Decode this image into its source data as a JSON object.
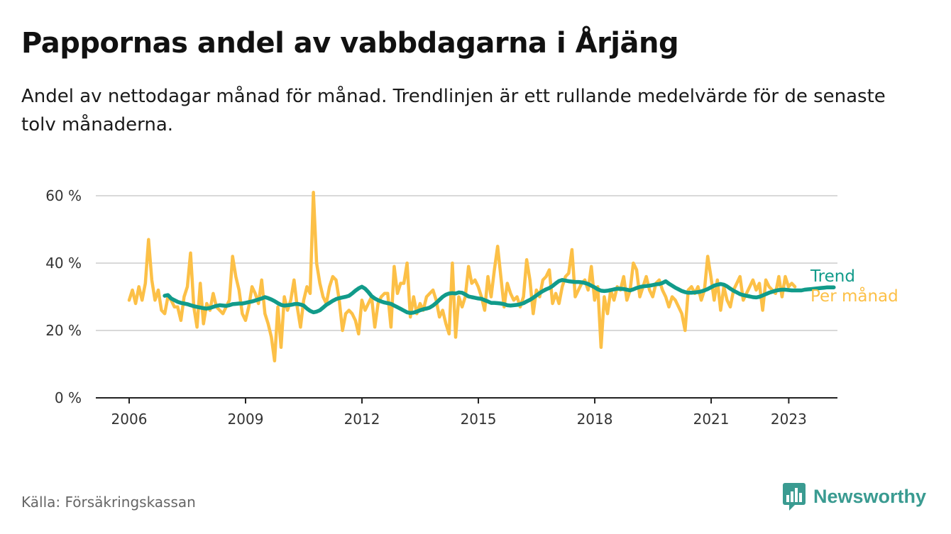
{
  "title": "Pappornas andel av vabbdagarna i Årjäng",
  "subtitle": "Andel av nettodagar månad för månad. Trendlinjen är ett rullande medelvärde för de senaste tolv månaderna.",
  "source": "Källa: Försäkringskassan",
  "brand": {
    "name": "Newsworthy",
    "icon": "newsworthy-bar-chart-icon",
    "color": "#3a9b91"
  },
  "colors": {
    "per_month": "#fcc047",
    "trend": "#119b8a",
    "grid": "#d9d9d9",
    "axis": "#222222"
  },
  "chart_data": {
    "type": "line",
    "x_unit": "year",
    "ylim": [
      0,
      60
    ],
    "yticks": [
      0,
      20,
      40,
      60
    ],
    "ytick_labels": [
      "0 %",
      "20 %",
      "40 %",
      "60 %"
    ],
    "xticks": [
      2006,
      2009,
      2012,
      2015,
      2018,
      2021,
      2023
    ],
    "xtick_labels": [
      "2006",
      "2009",
      "2012",
      "2015",
      "2018",
      "2021",
      "2023"
    ],
    "grid": true,
    "series": [
      {
        "name": "Per månad",
        "x_start": 2006.0,
        "x_step": 0.0833,
        "values": [
          29,
          32,
          28,
          33,
          29,
          34,
          47,
          35,
          29,
          32,
          26,
          25,
          30,
          29,
          27,
          27,
          23,
          30,
          33,
          43,
          27,
          21,
          34,
          22,
          28,
          26,
          31,
          27,
          26,
          25,
          27,
          29,
          42,
          36,
          32,
          25,
          23,
          27,
          33,
          31,
          28,
          35,
          25,
          22,
          18,
          11,
          27,
          15,
          30,
          26,
          29,
          35,
          27,
          21,
          29,
          33,
          31,
          61,
          40,
          34,
          30,
          28,
          33,
          36,
          35,
          29,
          20,
          25,
          26,
          25,
          23,
          19,
          29,
          26,
          28,
          30,
          21,
          28,
          30,
          31,
          31,
          21,
          39,
          31,
          34,
          34,
          40,
          24,
          30,
          25,
          28,
          26,
          30,
          31,
          32,
          29,
          24,
          26,
          22,
          19,
          40,
          18,
          30,
          27,
          30,
          39,
          34,
          35,
          33,
          30,
          26,
          36,
          30,
          38,
          45,
          36,
          27,
          34,
          31,
          29,
          30,
          27,
          30,
          41,
          35,
          25,
          32,
          30,
          35,
          36,
          38,
          28,
          31,
          28,
          33,
          36,
          37,
          44,
          30,
          32,
          34,
          35,
          32,
          39,
          29,
          33,
          15,
          30,
          25,
          32,
          29,
          33,
          32,
          36,
          29,
          32,
          40,
          38,
          30,
          33,
          36,
          32,
          30,
          34,
          35,
          32,
          30,
          27,
          30,
          29,
          27,
          25,
          20,
          32,
          33,
          31,
          33,
          29,
          32,
          42,
          36,
          29,
          35,
          26,
          33,
          29,
          27,
          32,
          34,
          36,
          29,
          31,
          33,
          35,
          32,
          34,
          26,
          35,
          33,
          32,
          31,
          36,
          30,
          36,
          33,
          34,
          33
        ]
      },
      {
        "name": "Trend",
        "x_start": 2006.9167,
        "x_step": 0.0833,
        "values": [
          30.3,
          30.5,
          29.5,
          29,
          28.5,
          28.2,
          28,
          27.8,
          27.5,
          27.2,
          27,
          26.8,
          26.6,
          26.5,
          26.7,
          27,
          27.3,
          27.5,
          27.4,
          27.3,
          27.5,
          27.8,
          27.9,
          28,
          28,
          28.2,
          28.4,
          28.6,
          28.9,
          29.2,
          29.5,
          29.9,
          29.6,
          29.2,
          28.7,
          28.1,
          27.6,
          27.4,
          27.5,
          27.6,
          27.8,
          27.9,
          27.7,
          27.4,
          26.5,
          25.8,
          25.4,
          25.6,
          26,
          26.8,
          27.6,
          28.2,
          28.8,
          29.3,
          29.6,
          29.8,
          30,
          30.3,
          31,
          31.8,
          32.5,
          33,
          32.4,
          31.4,
          30.2,
          29.5,
          29,
          28.6,
          28.3,
          28.1,
          27.9,
          27.4,
          26.9,
          26.4,
          25.9,
          25.4,
          25.2,
          25.3,
          25.6,
          26,
          26.3,
          26.5,
          26.8,
          27.4,
          28.2,
          29.1,
          30,
          30.6,
          31,
          31.1,
          31,
          31.3,
          31.2,
          30.7,
          30.1,
          29.9,
          29.7,
          29.5,
          29.4,
          29,
          28.6,
          28.2,
          28.2,
          28.1,
          28,
          27.8,
          27.5,
          27.4,
          27.5,
          27.6,
          27.8,
          28.1,
          28.6,
          29.1,
          29.7,
          30.4,
          31.1,
          31.7,
          32.2,
          32.6,
          33.2,
          34,
          34.7,
          35,
          34.8,
          34.6,
          34.5,
          34.4,
          34.4,
          34.3,
          34.1,
          33.8,
          33.3,
          32.8,
          32.2,
          31.8,
          31.7,
          31.8,
          32,
          32.2,
          32.4,
          32.4,
          32.3,
          32.1,
          31.9,
          32.2,
          32.6,
          32.9,
          33.1,
          33.2,
          33.3,
          33.5,
          33.7,
          33.8,
          34.1,
          34.6,
          33.9,
          33.3,
          32.7,
          32.2,
          31.7,
          31.4,
          31.2,
          31.2,
          31.3,
          31.4,
          31.6,
          31.9,
          32.3,
          32.8,
          33.3,
          33.6,
          33.8,
          33.6,
          33.1,
          32.4,
          31.8,
          31.3,
          30.8,
          30.5,
          30.3,
          30.1,
          29.9,
          29.8,
          30,
          30.4,
          30.8,
          31.2,
          31.5,
          31.8,
          32,
          32.1,
          32.1,
          32,
          31.9,
          31.9,
          31.9,
          31.9,
          32.1,
          32.2,
          32.3,
          32.4,
          32.5,
          32.6,
          32.7,
          32.8,
          32.8,
          32.8
        ]
      }
    ]
  }
}
